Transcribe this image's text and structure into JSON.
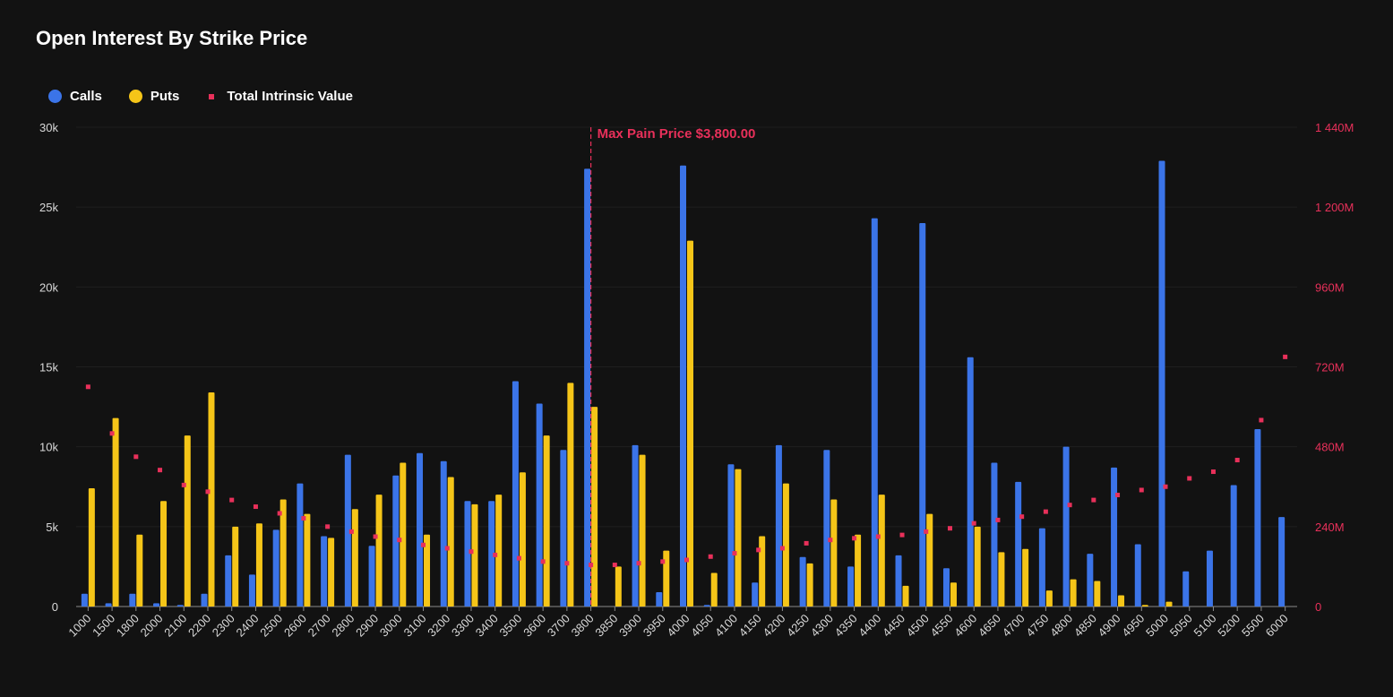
{
  "title": "Open Interest By Strike Price",
  "legend": {
    "calls": "Calls",
    "puts": "Puts",
    "intrinsic": "Total Intrinsic Value"
  },
  "colors": {
    "calls": "#3b74e8",
    "puts": "#f5c518",
    "intrinsic": "#e8305a",
    "background": "#121212",
    "grid": "#1f1f1f",
    "axis_text": "#d9d9d9"
  },
  "annotation": {
    "label": "Max Pain Price $3,800.00",
    "strike": "3800"
  },
  "chart_data": {
    "type": "bar",
    "categories": [
      "1000",
      "1500",
      "1800",
      "2000",
      "2100",
      "2200",
      "2300",
      "2400",
      "2500",
      "2600",
      "2700",
      "2800",
      "2900",
      "3000",
      "3100",
      "3200",
      "3300",
      "3400",
      "3500",
      "3600",
      "3700",
      "3800",
      "3850",
      "3900",
      "3950",
      "4000",
      "4050",
      "4100",
      "4150",
      "4200",
      "4250",
      "4300",
      "4350",
      "4400",
      "4450",
      "4500",
      "4550",
      "4600",
      "4650",
      "4700",
      "4750",
      "4800",
      "4850",
      "4900",
      "4950",
      "5000",
      "5050",
      "5100",
      "5200",
      "5500",
      "6000"
    ],
    "series": [
      {
        "name": "Calls",
        "axis": "left",
        "type": "bar",
        "values": [
          800,
          200,
          800,
          200,
          100,
          800,
          3200,
          2000,
          4800,
          7700,
          4400,
          9500,
          3800,
          8200,
          9600,
          9100,
          6600,
          6600,
          14100,
          12700,
          9800,
          27400,
          0,
          10100,
          900,
          27600,
          100,
          8900,
          1500,
          10100,
          3100,
          9800,
          2500,
          24300,
          3200,
          24000,
          2400,
          15600,
          9000,
          7800,
          4900,
          10000,
          3300,
          8700,
          3900,
          27900,
          2200,
          3500,
          7600,
          11100,
          5600
        ]
      },
      {
        "name": "Puts",
        "axis": "left",
        "type": "bar",
        "values": [
          7400,
          11800,
          4500,
          6600,
          10700,
          13400,
          5000,
          5200,
          6700,
          5800,
          4300,
          6100,
          7000,
          9000,
          4500,
          8100,
          6400,
          7000,
          8400,
          10700,
          14000,
          12500,
          2500,
          9500,
          3500,
          22900,
          2100,
          8600,
          4400,
          7700,
          2700,
          6700,
          4500,
          7000,
          1300,
          5800,
          1500,
          5000,
          3400,
          3600,
          1000,
          1700,
          1600,
          700,
          100,
          300,
          0,
          0,
          0,
          0,
          0
        ]
      },
      {
        "name": "Total Intrinsic Value",
        "axis": "right",
        "type": "scatter",
        "values": [
          660,
          520,
          450,
          410,
          365,
          345,
          320,
          300,
          280,
          265,
          240,
          225,
          210,
          200,
          185,
          175,
          165,
          155,
          145,
          135,
          130,
          125,
          125,
          130,
          135,
          140,
          150,
          160,
          170,
          175,
          190,
          200,
          205,
          210,
          215,
          225,
          235,
          250,
          260,
          270,
          285,
          305,
          320,
          335,
          350,
          360,
          385,
          405,
          440,
          560,
          750
        ]
      }
    ],
    "ylim_left": [
      0,
      30000
    ],
    "ylim_right": [
      0,
      1440
    ],
    "left_ticks": [
      "0",
      "5k",
      "10k",
      "15k",
      "20k",
      "25k",
      "30k"
    ],
    "right_ticks": [
      "0",
      "240M",
      "480M",
      "720M",
      "960M",
      "1 200M",
      "1 440M"
    ],
    "grid": true,
    "legend_position": "top-left"
  }
}
